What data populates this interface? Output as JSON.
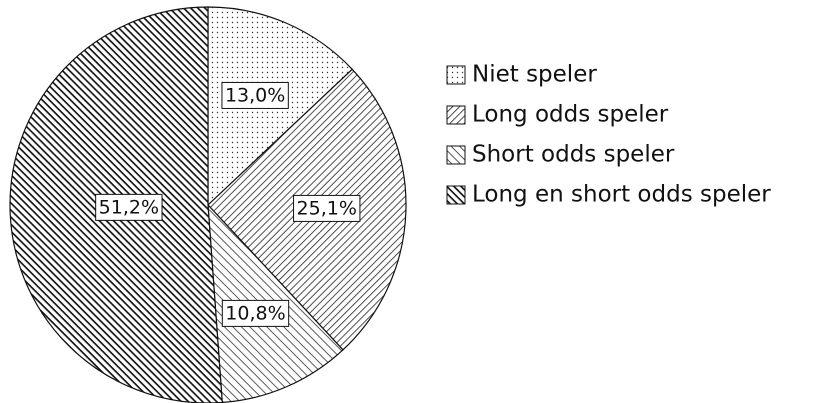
{
  "chart_data": {
    "type": "pie",
    "categories": [
      "Niet speler",
      "Long odds speler",
      "Short odds speler",
      "Long en short odds speler"
    ],
    "values": [
      13.0,
      25.1,
      10.8,
      51.2
    ],
    "value_labels": [
      "13,0%",
      "25,1%",
      "10,8%",
      "51,2%"
    ],
    "legend": "right"
  }
}
